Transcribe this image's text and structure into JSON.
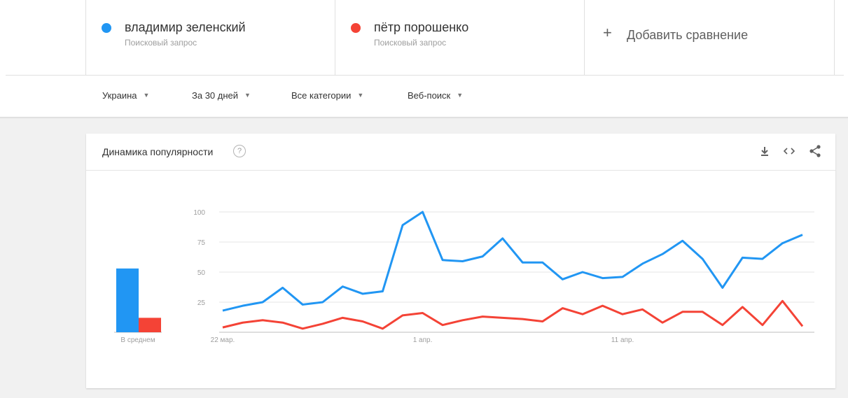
{
  "terms": [
    {
      "name": "владимир зеленский",
      "subtitle": "Поисковый запрос",
      "color": "#2196f3"
    },
    {
      "name": "пётр порошенко",
      "subtitle": "Поисковый запрос",
      "color": "#f44336"
    }
  ],
  "add_comparison": {
    "icon": "plus-icon",
    "label": "Добавить сравнение"
  },
  "filters": {
    "region": "Украина",
    "period": "За 30 дней",
    "category": "Все категории",
    "search_type": "Веб-поиск"
  },
  "card": {
    "title": "Динамика популярности",
    "help_icon": "?",
    "icons": [
      "download-icon",
      "embed-icon",
      "share-icon"
    ]
  },
  "chart_data": {
    "type": "line",
    "x": [
      "22 мар.",
      "23 мар.",
      "24 мар.",
      "25 мар.",
      "26 мар.",
      "27 мар.",
      "28 мар.",
      "29 мар.",
      "30 мар.",
      "31 мар.",
      "1 апр.",
      "2 апр.",
      "3 апр.",
      "4 апр.",
      "5 апр.",
      "6 апр.",
      "7 апр.",
      "8 апр.",
      "9 апр.",
      "10 апр.",
      "11 апр.",
      "12 апр.",
      "13 апр.",
      "14 апр.",
      "15 апр.",
      "16 апр.",
      "17 апр.",
      "18 апр.",
      "19 апр.",
      "20 апр."
    ],
    "x_tick_labels": [
      "22 мар.",
      "1 апр.",
      "11 апр."
    ],
    "y_ticks": [
      25,
      50,
      75,
      100
    ],
    "ylim": [
      0,
      100
    ],
    "series": [
      {
        "values": [
          18,
          22,
          25,
          37,
          23,
          25,
          38,
          32,
          34,
          89,
          100,
          60,
          59,
          63,
          78,
          58,
          58,
          44,
          50,
          45,
          46,
          57,
          65,
          76,
          61,
          37,
          62,
          61,
          74,
          81
        ],
        "color": "#2196f3"
      },
      {
        "values": [
          4,
          8,
          10,
          8,
          3,
          7,
          12,
          9,
          3,
          14,
          16,
          6,
          10,
          13,
          12,
          11,
          9,
          20,
          15,
          22,
          15,
          19,
          8,
          17,
          17,
          6,
          21,
          6,
          26,
          5
        ],
        "color": "#f44336"
      }
    ],
    "average": {
      "label": "В среднем",
      "values": [
        53,
        12
      ]
    },
    "grid": true
  }
}
